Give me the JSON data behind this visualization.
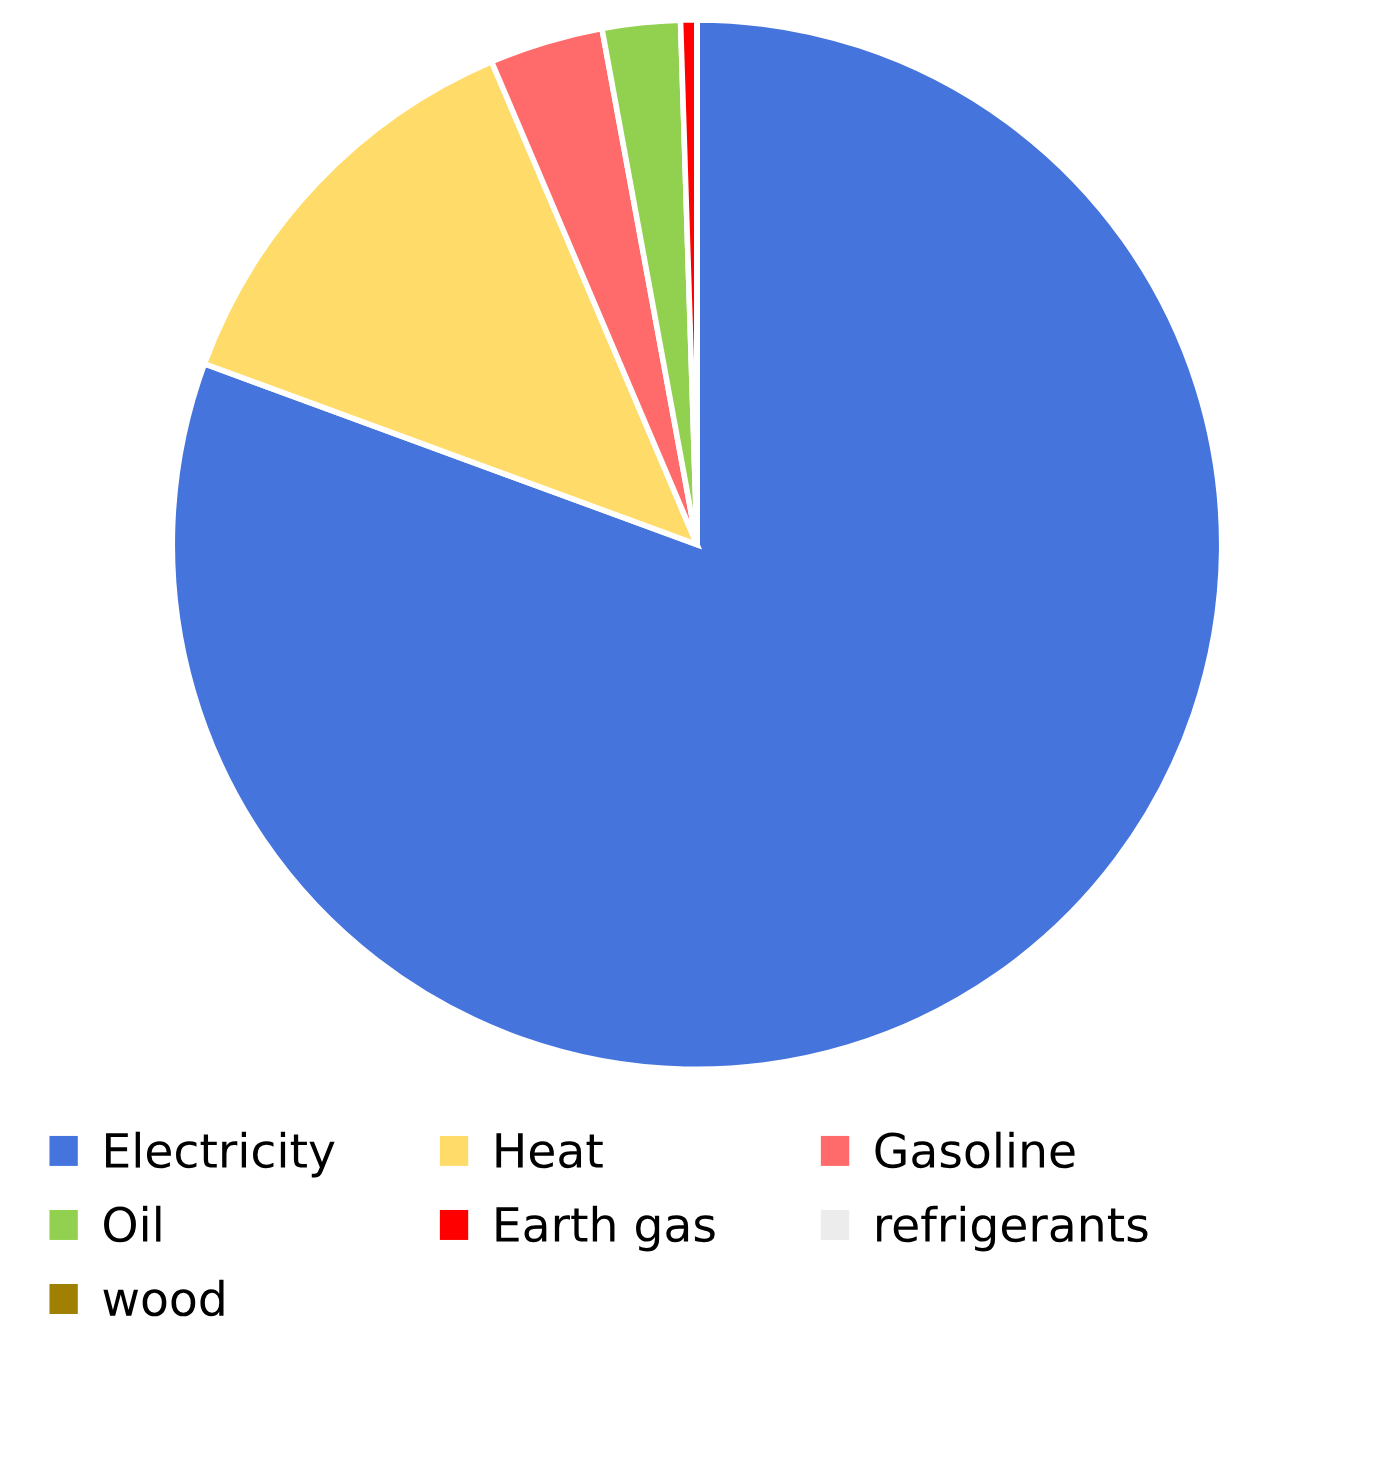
{
  "chart_data": {
    "type": "pie",
    "categories": [
      "Electricity",
      "Heat",
      "Gasoline",
      "Oil",
      "Earth gas",
      "refrigerants",
      "wood"
    ],
    "values": [
      80.6,
      13.0,
      3.5,
      2.4,
      0.5,
      0,
      0
    ],
    "colors": [
      "#4674dd",
      "#ffdc6a",
      "#ff6a6a",
      "#92d050",
      "#ff0000",
      "#ececec",
      "#a08000"
    ],
    "legend": "bottom"
  }
}
